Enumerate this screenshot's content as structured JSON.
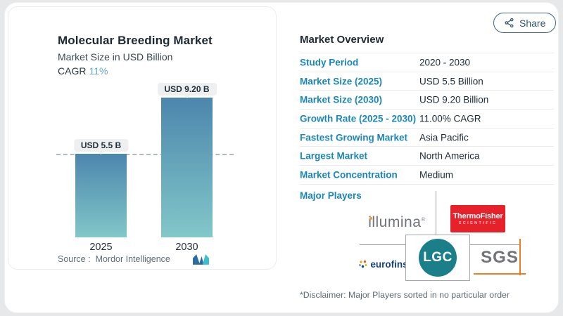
{
  "share_button": {
    "label": "Share"
  },
  "chart_card": {
    "title": "Molecular Breeding Market",
    "subtitle": "Market Size in USD Billion",
    "cagr_label": "CAGR",
    "cagr_value": "11%",
    "source_label": "Source :",
    "source_name": "Mordor Intelligence"
  },
  "chart_data": {
    "type": "bar",
    "title": "Molecular Breeding Market",
    "ylabel": "Market Size in USD Billion",
    "cagr_pct": 11,
    "categories": [
      "2025",
      "2030"
    ],
    "values": [
      5.5,
      9.2
    ],
    "bar_labels": [
      "USD 5.5 B",
      "USD 9.20 B"
    ],
    "ylim": [
      0,
      9.2
    ],
    "reference_line_at": 5.5,
    "grid": "off",
    "legend": "none",
    "bar_color_top": "#4c86ad",
    "bar_color_bottom": "#82c7c9"
  },
  "overview": {
    "title": "Market Overview",
    "rows": [
      {
        "label": "Study Period",
        "value": "2020 - 2030"
      },
      {
        "label": "Market Size (2025)",
        "value": "USD 5.5 Billion"
      },
      {
        "label": "Market Size (2030)",
        "value": "USD 9.20 Billion"
      },
      {
        "label": "Growth Rate (2025 - 2030)",
        "value": "11.00% CAGR"
      },
      {
        "label": "Fastest Growing Market",
        "value": "Asia Pacific"
      },
      {
        "label": "Largest Market",
        "value": "North America"
      },
      {
        "label": "Market Concentration",
        "value": "Medium"
      }
    ],
    "major_players_label": "Major Players",
    "players": [
      {
        "name": "illumina",
        "wordmark": "illumina",
        "reg": "®"
      },
      {
        "name": "Thermo Fisher Scientific",
        "line1": "ThermoFisher",
        "line2": "SCIENTIFIC"
      },
      {
        "name": "eurofins",
        "wordmark": "eurofins"
      },
      {
        "name": "LGC",
        "wordmark": "LGC"
      },
      {
        "name": "SGS",
        "wordmark": "SGS"
      }
    ],
    "disclaimer": "*Disclaimer: Major Players sorted in no particular order"
  },
  "colors": {
    "page_bg": "#e7e8e9",
    "card_bg": "#ffffff",
    "label_blue": "#1b86b8",
    "cagr_accent": "#67a9c6",
    "bar_top": "#4c86ad",
    "bar_bottom": "#82c7c9",
    "thermo_red": "#e62129",
    "lgc_teal": "#1b7f8a",
    "eurofins_blue": "#123f8e",
    "sgs_gray": "#717376",
    "sgs_orange": "#ef7c1f",
    "illumina_gray": "#6f7276"
  }
}
